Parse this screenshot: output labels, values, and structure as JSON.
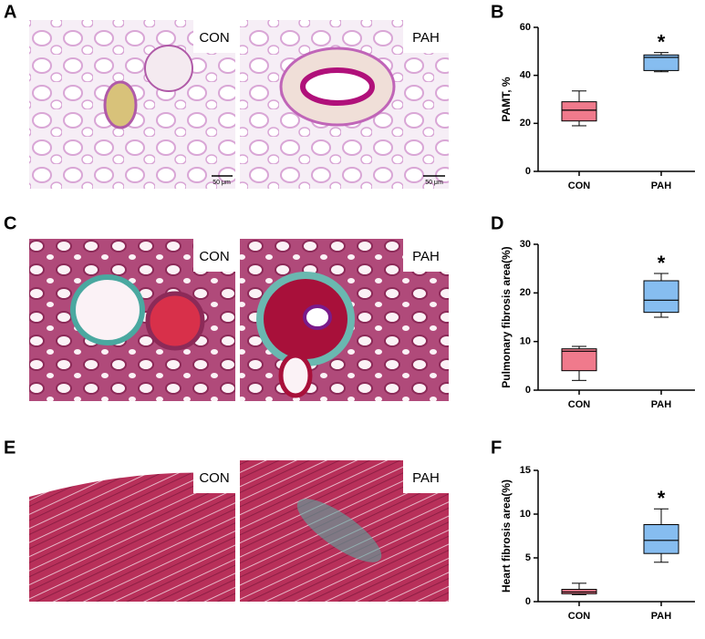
{
  "figure": {
    "panels": [
      {
        "letter": "A",
        "images": [
          {
            "label": "CON",
            "scale_bar": "50 μm"
          },
          {
            "label": "PAH",
            "scale_bar": "50 μm"
          }
        ]
      },
      {
        "letter": "B"
      },
      {
        "letter": "C",
        "images": [
          {
            "label": "CON"
          },
          {
            "label": "PAH"
          }
        ]
      },
      {
        "letter": "D"
      },
      {
        "letter": "E",
        "images": [
          {
            "label": "CON"
          },
          {
            "label": "PAH"
          }
        ]
      },
      {
        "letter": "F"
      }
    ]
  },
  "chart_data": [
    {
      "type": "box",
      "y_label": "PAMT, %",
      "categories": [
        "CON",
        "PAH"
      ],
      "boxes": [
        {
          "min": 19,
          "q1": 21,
          "median": 25.5,
          "q3": 29,
          "max": 33.5,
          "color": "#f07a8c"
        },
        {
          "min": 41.5,
          "q1": 42,
          "median": 47.5,
          "q3": 48.5,
          "max": 49.5,
          "color": "#86bdf0",
          "label": "*"
        }
      ],
      "ylim": [
        0,
        60
      ],
      "yticks": [
        0,
        20,
        40,
        60
      ]
    },
    {
      "type": "box",
      "y_label": "Pulmonary fibrosis area(%)",
      "categories": [
        "CON",
        "PAH"
      ],
      "boxes": [
        {
          "min": 2,
          "q1": 4,
          "median": 8,
          "q3": 8.5,
          "max": 9,
          "color": "#f07a8c"
        },
        {
          "min": 15,
          "q1": 16,
          "median": 18.5,
          "q3": 22.5,
          "max": 24,
          "color": "#86bdf0",
          "label": "*"
        }
      ],
      "ylim": [
        0,
        30
      ],
      "yticks": [
        0,
        10,
        20,
        30
      ]
    },
    {
      "type": "box",
      "y_label": "Heart fibrosis area(%)",
      "categories": [
        "CON",
        "PAH"
      ],
      "boxes": [
        {
          "min": 0.8,
          "q1": 0.9,
          "median": 1.1,
          "q3": 1.4,
          "max": 2.1,
          "color": "#f07a8c"
        },
        {
          "min": 4.5,
          "q1": 5.5,
          "median": 7,
          "q3": 8.8,
          "max": 10.6,
          "color": "#86bdf0",
          "label": "*"
        }
      ],
      "ylim": [
        0,
        15
      ],
      "yticks": [
        0,
        5,
        10,
        15
      ]
    }
  ]
}
